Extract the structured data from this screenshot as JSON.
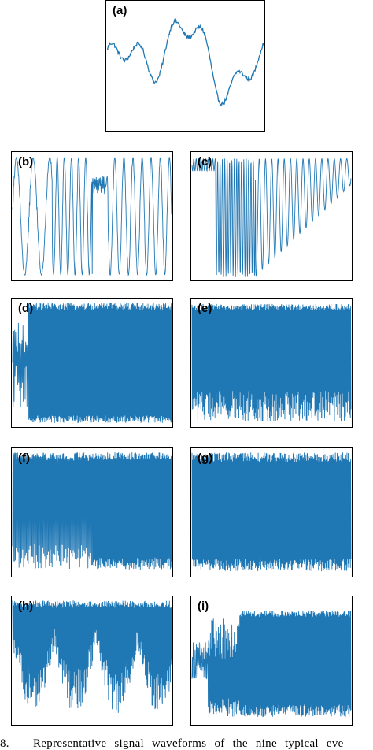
{
  "chart_data": [
    {
      "type": "line",
      "label": "(a)",
      "color": "#1f77b4",
      "pattern": "smooth",
      "fill": 0.0
    },
    {
      "type": "line",
      "label": "(b)",
      "color": "#1f77b4",
      "pattern": "osc_mixed",
      "fill": 0.15
    },
    {
      "type": "line",
      "label": "(c)",
      "color": "#1f77b4",
      "pattern": "osc_decay",
      "fill": 0.2
    },
    {
      "type": "line",
      "label": "(d)",
      "color": "#1f77b4",
      "pattern": "dense_block",
      "fill": 0.85
    },
    {
      "type": "line",
      "label": "(e)",
      "color": "#1f77b4",
      "pattern": "dense_lines",
      "fill": 0.6
    },
    {
      "type": "line",
      "label": "(f)",
      "color": "#1f77b4",
      "pattern": "sparse_then_dense",
      "fill": 0.55
    },
    {
      "type": "line",
      "label": "(g)",
      "color": "#1f77b4",
      "pattern": "full_dense",
      "fill": 0.95
    },
    {
      "type": "line",
      "label": "(h)",
      "color": "#1f77b4",
      "pattern": "burst_valleys",
      "fill": 0.7
    },
    {
      "type": "line",
      "label": "(i)",
      "color": "#1f77b4",
      "pattern": "saturated_top",
      "fill": 0.6
    }
  ],
  "caption": {
    "number": "8.",
    "text": "Representative signal waveforms of the nine typical eve"
  }
}
